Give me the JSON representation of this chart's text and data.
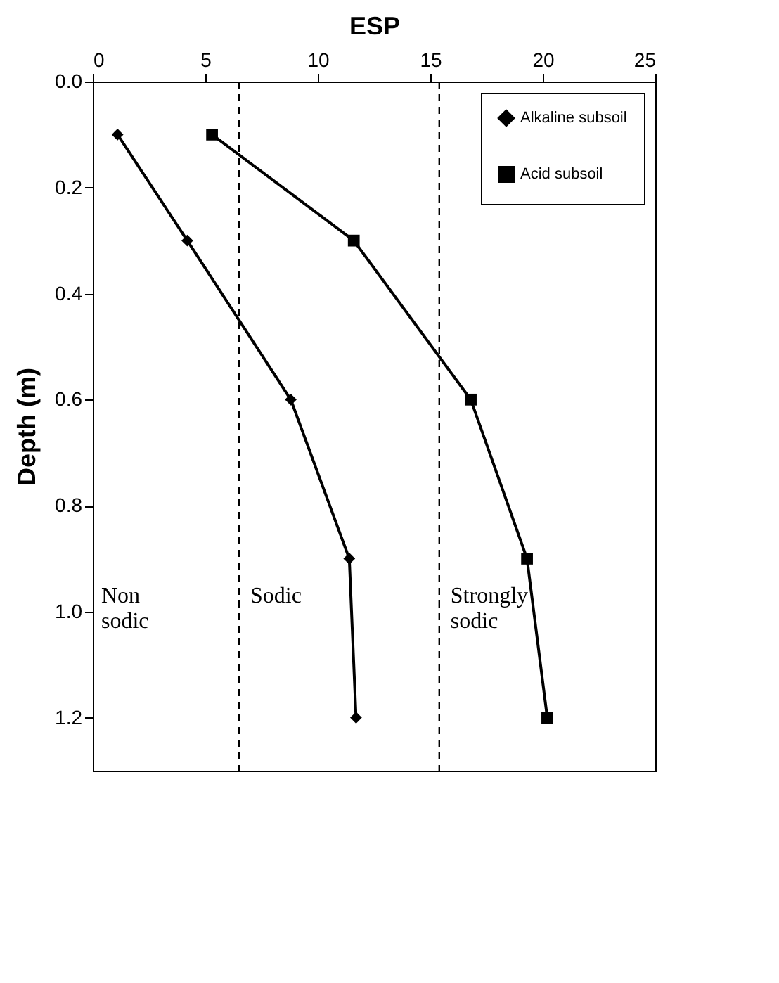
{
  "chart_data": {
    "type": "line",
    "xlabel": "ESP",
    "ylabel": "Depth (m)",
    "xlim": [
      0,
      25
    ],
    "xticks": [
      0,
      5,
      10,
      15,
      20,
      25
    ],
    "ylim": [
      1.3,
      0
    ],
    "yticks": [
      {
        "value": 0,
        "label": "0.0"
      },
      0.2,
      0.4,
      0.6,
      0.8,
      {
        "value": 1,
        "label": "1.0"
      },
      1.2
    ],
    "grid": false,
    "legend": "top right",
    "line_style": "solid",
    "series": [
      {
        "name": "Alkaline subsoil",
        "color": "#000000",
        "marker": "diamond",
        "x": [
          1.1,
          4.2,
          8.8,
          11.4,
          11.7
        ],
        "values": [
          0.1,
          0.3,
          0.6,
          0.9,
          1.2
        ]
      },
      {
        "name": "Acid subsoil",
        "color": "#000000",
        "marker": "square",
        "x": [
          5.3,
          11.6,
          16.8,
          19.3,
          20.2
        ],
        "values": [
          0.1,
          0.3,
          0.6,
          0.9,
          1.2
        ]
      }
    ],
    "ref_lines": [
      {
        "axis": "x",
        "value": 6.5,
        "line_style": "dashed",
        "color": "#000000"
      },
      {
        "axis": "x",
        "value": 15.4,
        "line_style": "dashed",
        "color": "#000000"
      }
    ],
    "annotations": [
      "Non sodic",
      "Sodic",
      "Strongly sodic"
    ]
  }
}
